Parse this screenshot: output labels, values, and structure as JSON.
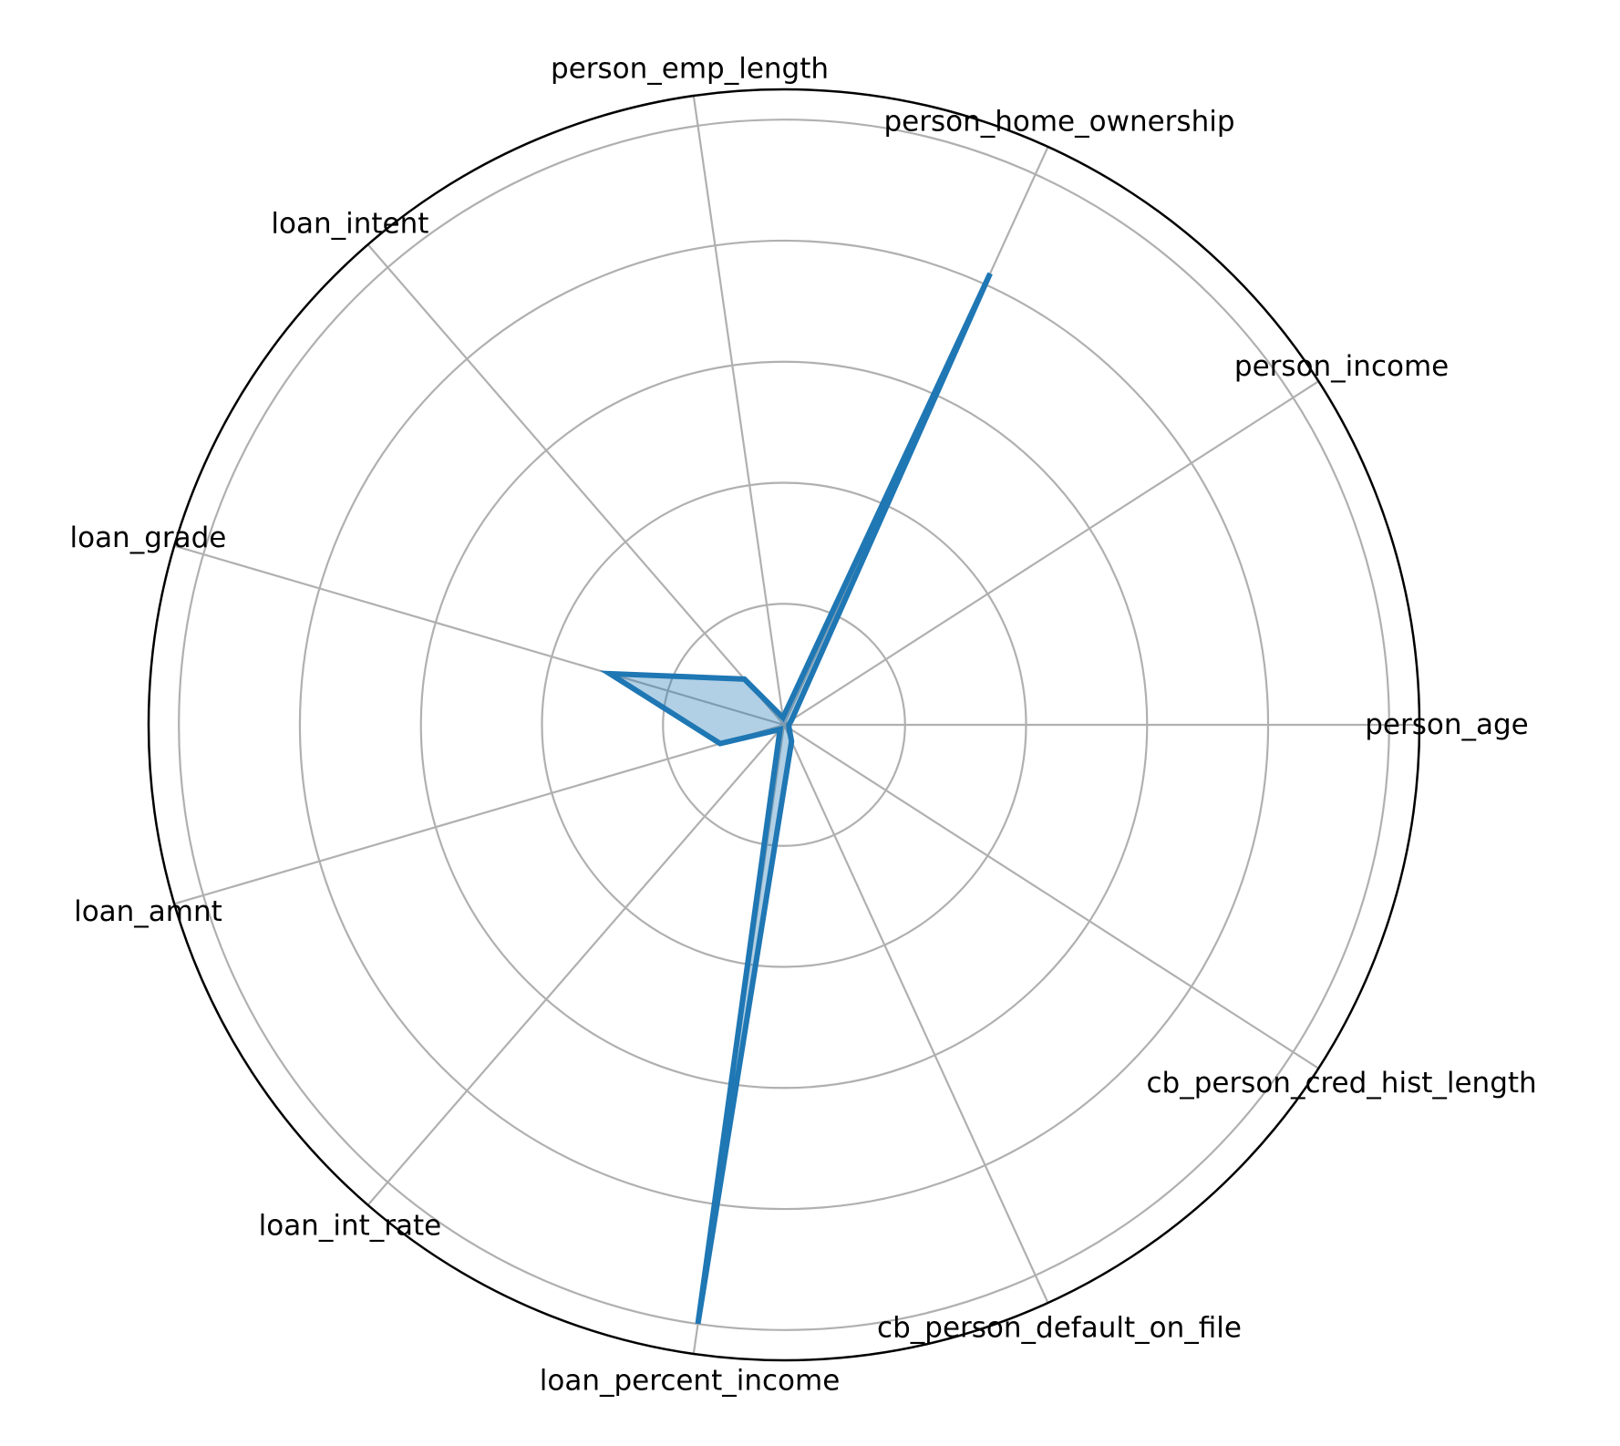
{
  "chart_data": {
    "type": "radar",
    "title": "",
    "categories": [
      "person_age",
      "person_income",
      "person_home_ownership",
      "person_emp_length",
      "loan_intent",
      "loan_grade",
      "loan_amnt",
      "loan_int_rate",
      "loan_percent_income",
      "cb_person_default_on_file",
      "cb_person_cred_hist_length"
    ],
    "series": [
      {
        "values": [
          0.008,
          0.015,
          0.82,
          0.012,
          0.1,
          0.3,
          0.11,
          0.01,
          1.0,
          0.03,
          0.01
        ]
      }
    ],
    "rlim": [
      0,
      1.05
    ],
    "rgrid": [
      0.2,
      0.4,
      0.6,
      0.8,
      1.0
    ],
    "radial_tick_labels_shown": false,
    "grid": true,
    "legend": "none",
    "colors": {
      "line": "#1f77b4",
      "fill": "#1f77b4",
      "fill_opacity": 0.35,
      "grid": "#b0b0b0",
      "frame": "#000000"
    }
  }
}
